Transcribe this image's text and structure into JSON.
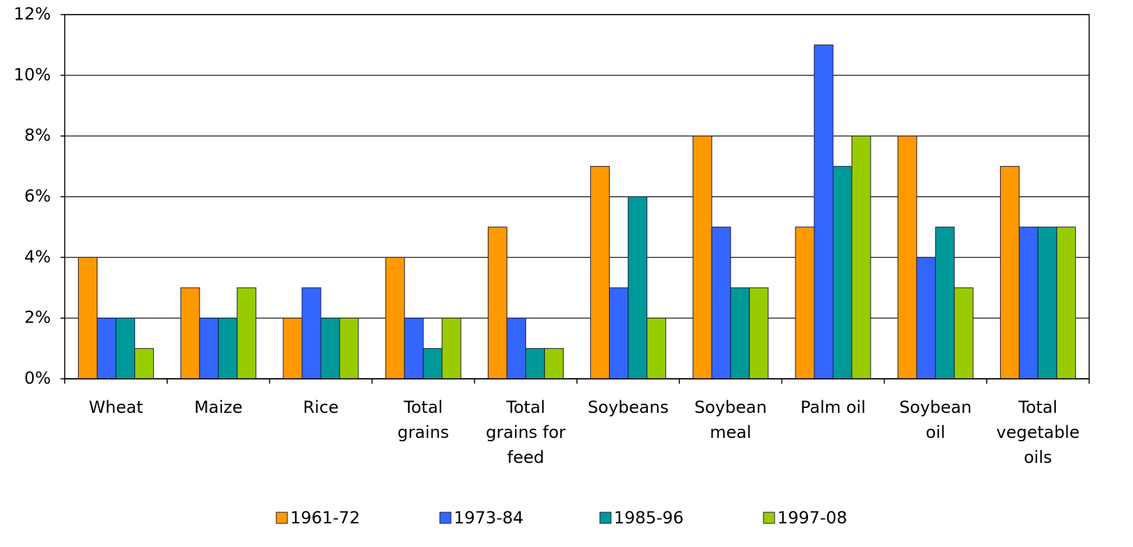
{
  "chart_data": {
    "type": "bar",
    "categories": [
      "Wheat",
      "Maize",
      "Rice",
      "Total grains",
      "Total grains for feed",
      "Soybeans",
      "Soybean meal",
      "Palm oil",
      "Soybean oil",
      "Total vegetable oils"
    ],
    "series": [
      {
        "name": "1961-72",
        "color": "#FF9900",
        "values": [
          4,
          3,
          2,
          4,
          5,
          7,
          8,
          5,
          8,
          7
        ]
      },
      {
        "name": "1973-84",
        "color": "#3366FF",
        "values": [
          2,
          2,
          3,
          2,
          2,
          3,
          5,
          11,
          4,
          5
        ]
      },
      {
        "name": "1985-96",
        "color": "#009999",
        "values": [
          2,
          2,
          2,
          1,
          1,
          6,
          3,
          7,
          5,
          5
        ]
      },
      {
        "name": "1997-08",
        "color": "#99CC00",
        "values": [
          1,
          3,
          2,
          2,
          1,
          2,
          3,
          8,
          3,
          5
        ]
      }
    ],
    "ylim": [
      0,
      12
    ],
    "yticks": [
      {
        "value": 0,
        "label": "0%"
      },
      {
        "value": 2,
        "label": "2%"
      },
      {
        "value": 4,
        "label": "4%"
      },
      {
        "value": 6,
        "label": "6%"
      },
      {
        "value": 8,
        "label": "8%"
      },
      {
        "value": 10,
        "label": "10%"
      },
      {
        "value": 12,
        "label": "12%"
      }
    ],
    "grid": true
  }
}
